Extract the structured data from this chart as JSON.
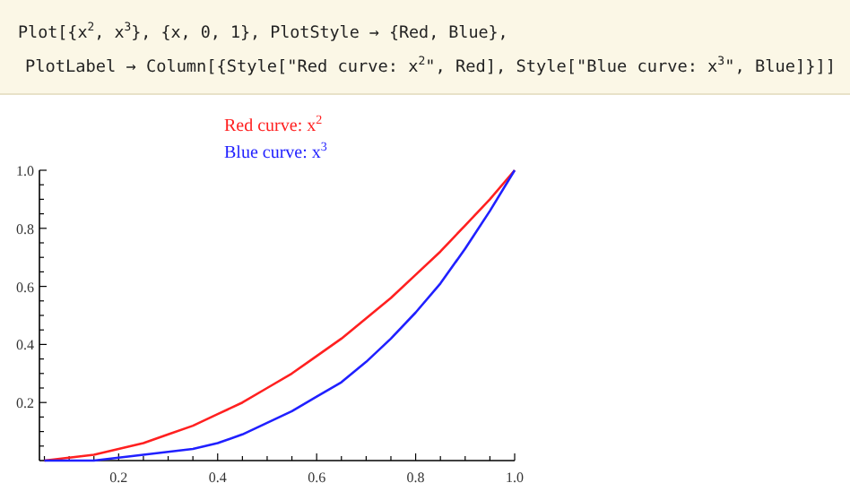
{
  "chart_data": {
    "type": "line",
    "title": "Red curve: x$^{2}$",
    "subtitle": "Blue curve: x$^{3}$",
    "annotations": [
      "Plot[{x$^{2}$, x$^{3}$}, {x, 0, 1}, PlotStyle → {Red, Blue},",
      "PlotLabel → Column[{Style[\"Red curve: x$^{2}$\", Red], Style[\"Blue curve: x$^{3}$\", Blue]}]]"
    ],
    "x": [
      0.05,
      0.1,
      0.15,
      0.2,
      0.25,
      0.3,
      0.35,
      0.4,
      0.45,
      0.5,
      0.55,
      0.6,
      0.65,
      0.7,
      0.75,
      0.8,
      0.85,
      0.9,
      0.95,
      1.0
    ],
    "series": [
      {
        "color": "#ff2020",
        "values": [
          0.0,
          0.01,
          0.02,
          0.04,
          0.06,
          0.09,
          0.12,
          0.16,
          0.2,
          0.25,
          0.3,
          0.36,
          0.42,
          0.49,
          0.56,
          0.64,
          0.72,
          0.81,
          0.9,
          1.0
        ]
      },
      {
        "color": "#2020ff",
        "values": [
          0.0,
          0.0,
          0.0,
          0.01,
          0.02,
          0.03,
          0.04,
          0.06,
          0.09,
          0.13,
          0.17,
          0.22,
          0.27,
          0.34,
          0.42,
          0.51,
          0.61,
          0.73,
          0.86,
          1.0
        ]
      }
    ],
    "xlim": [
      0.04,
      1.0
    ],
    "ylim": [
      0,
      1.0
    ],
    "xticks": [
      {
        "value": 0.05,
        "label": null
      },
      {
        "value": 0.1,
        "label": null
      },
      {
        "value": 0.15,
        "label": null
      },
      0.2,
      {
        "value": 0.25,
        "label": null
      },
      {
        "value": 0.3,
        "label": null
      },
      {
        "value": 0.35,
        "label": null
      },
      0.4,
      {
        "value": 0.45,
        "label": null
      },
      {
        "value": 0.5,
        "label": null
      },
      {
        "value": 0.55,
        "label": null
      },
      0.6,
      {
        "value": 0.65,
        "label": null
      },
      {
        "value": 0.7,
        "label": null
      },
      {
        "value": 0.75,
        "label": null
      },
      0.8,
      {
        "value": 0.85,
        "label": null
      },
      {
        "value": 0.9,
        "label": null
      },
      {
        "value": 0.95,
        "label": null
      },
      {
        "value": 1.0,
        "label": "1.0"
      }
    ],
    "yticks": [
      {
        "value": 0.05,
        "label": null
      },
      {
        "value": 0.1,
        "label": null
      },
      {
        "value": 0.15,
        "label": null
      },
      0.2,
      {
        "value": 0.25,
        "label": null
      },
      {
        "value": 0.3,
        "label": null
      },
      {
        "value": 0.35,
        "label": null
      },
      0.4,
      {
        "value": 0.45,
        "label": null
      },
      {
        "value": 0.5,
        "label": null
      },
      {
        "value": 0.55,
        "label": null
      },
      0.6,
      {
        "value": 0.65,
        "label": null
      },
      {
        "value": 0.7,
        "label": null
      },
      {
        "value": 0.75,
        "label": null
      },
      0.8,
      {
        "value": 0.85,
        "label": null
      },
      {
        "value": 0.9,
        "label": null
      },
      {
        "value": 0.95,
        "label": null
      },
      {
        "value": 1.0,
        "label": "1.0"
      }
    ],
    "grid": false,
    "marker": "none",
    "line_style": "solid"
  }
}
